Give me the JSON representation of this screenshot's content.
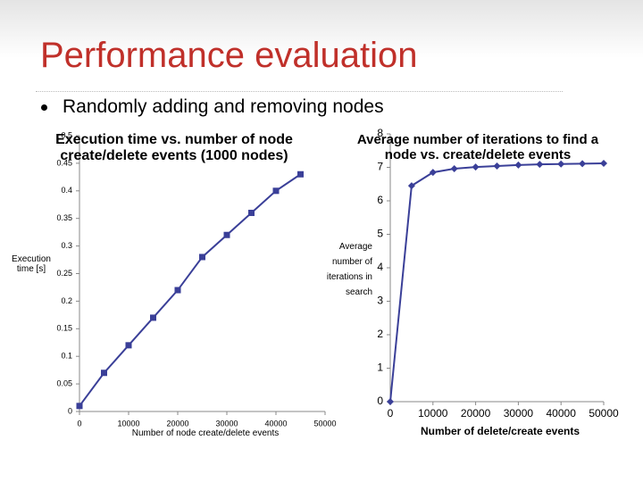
{
  "slide": {
    "title": "Performance evaluation",
    "bullet": "Randomly adding and removing nodes"
  },
  "chart_data": [
    {
      "type": "line",
      "title": "Execution time vs. number of node create/delete events (1000 nodes)",
      "x_label": "Number of node create/delete events",
      "y_label": "Execution time [s]",
      "x": [
        0,
        5000,
        10000,
        15000,
        20000,
        25000,
        30000,
        35000,
        40000,
        45000
      ],
      "series": [
        {
          "name": "Execution time",
          "color": "#3a3f98",
          "marker": "square",
          "values": [
            0.01,
            0.07,
            0.12,
            0.17,
            0.22,
            0.28,
            0.32,
            0.36,
            0.4,
            0.43
          ]
        }
      ],
      "xlim": [
        0,
        50000
      ],
      "xticks": [
        0,
        10000,
        20000,
        30000,
        40000,
        50000
      ],
      "ylim": [
        0,
        0.5
      ],
      "yticks": [
        0,
        0.05,
        0.1,
        0.15,
        0.2,
        0.25,
        0.3,
        0.35,
        0.4,
        0.45,
        0.5
      ]
    },
    {
      "type": "line",
      "title": "Average number of iterations to find a node vs. create/delete events",
      "x_label": "Number of delete/create events",
      "y_label": "Average number of iterations in search",
      "x": [
        0,
        5000,
        10000,
        15000,
        20000,
        25000,
        30000,
        35000,
        40000,
        45000,
        50000
      ],
      "series": [
        {
          "name": "Iterations",
          "color": "#3a3f98",
          "marker": "diamond",
          "values": [
            0,
            6.45,
            6.85,
            6.96,
            7.01,
            7.04,
            7.07,
            7.09,
            7.1,
            7.11,
            7.12
          ]
        }
      ],
      "xlim": [
        0,
        50000
      ],
      "xticks": [
        0,
        10000,
        20000,
        30000,
        40000,
        50000
      ],
      "ylim": [
        0,
        8
      ],
      "yticks": [
        0,
        1,
        2,
        3,
        4,
        5,
        6,
        7,
        8
      ]
    }
  ]
}
